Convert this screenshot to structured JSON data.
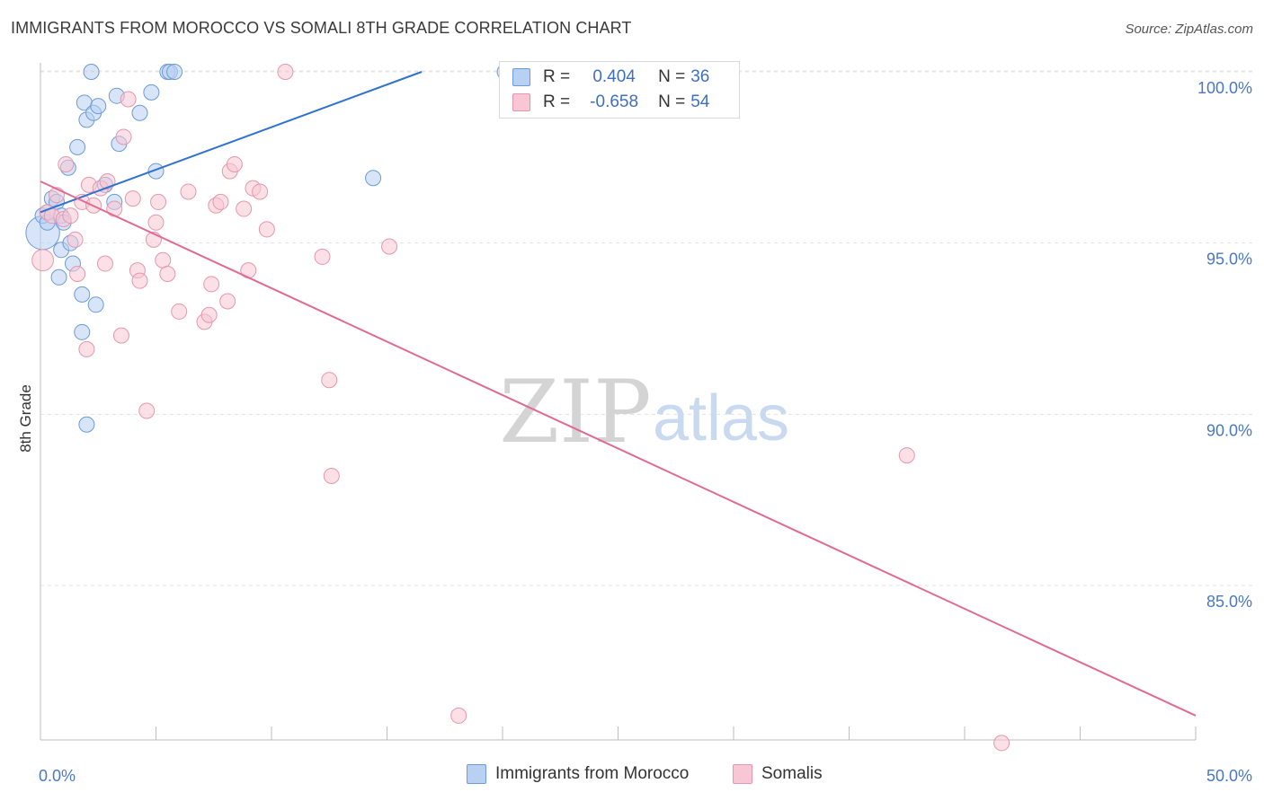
{
  "header": {
    "title": "IMMIGRANTS FROM MOROCCO VS SOMALI 8TH GRADE CORRELATION CHART",
    "source": "Source: ZipAtlas.com"
  },
  "watermark": {
    "zip": "ZIP",
    "atlas": "atlas"
  },
  "legend": {
    "rows": [
      {
        "r_label": "R =",
        "r_value": "0.404",
        "n_label": "N =",
        "n_value": "36"
      },
      {
        "r_label": "R =",
        "r_value": "-0.658",
        "n_label": "N =",
        "n_value": "54"
      }
    ]
  },
  "bottom_legend": {
    "series1": "Immigrants from Morocco",
    "series2": "Somalis"
  },
  "colors": {
    "blue_fill": "#b8d0f2",
    "blue_stroke": "#6d9ad8",
    "blue_line": "#2f72cf",
    "pink_fill": "#f8c6d4",
    "pink_stroke": "#e597ad",
    "pink_line": "#e06a93",
    "tick_text": "#4a78c4",
    "grid": "#e3e3e3"
  },
  "chart_data": {
    "type": "scatter",
    "title": "IMMIGRANTS FROM MOROCCO VS SOMALI 8TH GRADE CORRELATION CHART",
    "xlabel": "",
    "ylabel": "8th Grade",
    "xlim": [
      0,
      50
    ],
    "ylim": [
      80.2,
      100.5
    ],
    "x_tick_labels": [
      {
        "value": 0,
        "label": "0.0%"
      },
      {
        "value": 50,
        "label": "50.0%"
      }
    ],
    "x_minor_ticks": [
      0,
      5,
      10,
      15,
      20,
      25,
      30,
      35,
      40,
      45,
      50
    ],
    "y_ticks": [
      {
        "value": 100,
        "label": "100.0%"
      },
      {
        "value": 95,
        "label": "95.0%"
      },
      {
        "value": 90,
        "label": "90.0%"
      },
      {
        "value": 85,
        "label": "85.0%"
      }
    ],
    "series": [
      {
        "name": "Immigrants from Morocco",
        "color": "#6d9ad8",
        "R": 0.404,
        "N": 36,
        "trend": {
          "x": [
            0,
            16.5
          ],
          "y": [
            95.9,
            100.0
          ]
        },
        "points": [
          [
            0.1,
            95.3,
            22
          ],
          [
            0.1,
            95.8,
            10
          ],
          [
            0.3,
            95.6,
            10
          ],
          [
            0.3,
            95.9,
            10
          ],
          [
            0.5,
            96.3,
            10
          ],
          [
            0.7,
            96.2,
            10
          ],
          [
            0.8,
            94.0,
            10
          ],
          [
            0.9,
            95.8,
            10
          ],
          [
            1.0,
            95.6,
            10
          ],
          [
            0.9,
            94.8,
            10
          ],
          [
            1.2,
            97.2,
            10
          ],
          [
            1.3,
            95.0,
            10
          ],
          [
            1.4,
            94.4,
            10
          ],
          [
            1.6,
            97.8,
            10
          ],
          [
            1.8,
            93.5,
            10
          ],
          [
            1.8,
            92.4,
            10
          ],
          [
            1.9,
            99.1,
            10
          ],
          [
            2.0,
            98.6,
            10
          ],
          [
            2.0,
            89.7,
            10
          ],
          [
            2.2,
            100.0,
            10
          ],
          [
            2.3,
            98.8,
            10
          ],
          [
            2.5,
            99.0,
            10
          ],
          [
            2.4,
            93.2,
            10
          ],
          [
            2.8,
            96.7,
            10
          ],
          [
            3.2,
            96.2,
            10
          ],
          [
            3.3,
            99.3,
            10
          ],
          [
            3.4,
            97.9,
            10
          ],
          [
            4.3,
            98.8,
            10
          ],
          [
            4.8,
            99.4,
            10
          ],
          [
            5.0,
            97.1,
            10
          ],
          [
            5.5,
            100.0,
            10
          ],
          [
            5.6,
            100.0,
            10
          ],
          [
            5.8,
            100.0,
            10
          ],
          [
            14.4,
            96.9,
            10
          ],
          [
            20.1,
            100.0,
            10
          ]
        ]
      },
      {
        "name": "Somalis",
        "color": "#e597ad",
        "R": -0.658,
        "N": 54,
        "trend": {
          "x": [
            0,
            50
          ],
          "y": [
            96.8,
            81.2
          ]
        },
        "points": [
          [
            0.1,
            94.5,
            14
          ],
          [
            0.3,
            95.9,
            10
          ],
          [
            0.5,
            95.8,
            10
          ],
          [
            0.7,
            96.4,
            10
          ],
          [
            1.0,
            95.7,
            10
          ],
          [
            1.1,
            97.3,
            10
          ],
          [
            1.3,
            95.8,
            10
          ],
          [
            1.5,
            95.1,
            10
          ],
          [
            1.6,
            94.1,
            10
          ],
          [
            1.8,
            96.2,
            10
          ],
          [
            2.0,
            91.9,
            10
          ],
          [
            2.1,
            96.7,
            10
          ],
          [
            2.3,
            96.1,
            10
          ],
          [
            2.6,
            96.6,
            10
          ],
          [
            2.8,
            94.4,
            10
          ],
          [
            2.9,
            96.8,
            10
          ],
          [
            3.2,
            96.0,
            10
          ],
          [
            3.5,
            92.3,
            10
          ],
          [
            3.6,
            98.1,
            10
          ],
          [
            3.8,
            99.2,
            10
          ],
          [
            4.0,
            96.3,
            10
          ],
          [
            4.2,
            94.2,
            10
          ],
          [
            4.3,
            93.9,
            10
          ],
          [
            4.6,
            90.1,
            10
          ],
          [
            4.9,
            95.1,
            10
          ],
          [
            5.0,
            95.6,
            10
          ],
          [
            5.1,
            96.2,
            10
          ],
          [
            5.3,
            94.5,
            10
          ],
          [
            5.5,
            94.1,
            10
          ],
          [
            6.0,
            93.0,
            10
          ],
          [
            6.4,
            96.5,
            10
          ],
          [
            7.1,
            92.7,
            10
          ],
          [
            7.3,
            92.9,
            10
          ],
          [
            7.4,
            93.8,
            10
          ],
          [
            7.6,
            96.1,
            10
          ],
          [
            7.8,
            96.2,
            10
          ],
          [
            8.1,
            93.3,
            10
          ],
          [
            8.2,
            97.1,
            10
          ],
          [
            8.4,
            97.3,
            10
          ],
          [
            8.8,
            96.0,
            10
          ],
          [
            9.0,
            94.2,
            10
          ],
          [
            9.2,
            96.6,
            10
          ],
          [
            9.5,
            96.5,
            10
          ],
          [
            9.8,
            95.4,
            10
          ],
          [
            10.6,
            100.0,
            10
          ],
          [
            12.2,
            94.6,
            10
          ],
          [
            12.5,
            91.0,
            10
          ],
          [
            12.6,
            88.2,
            10
          ],
          [
            15.1,
            94.9,
            10
          ],
          [
            18.1,
            81.2,
            10
          ],
          [
            37.5,
            88.8,
            10
          ],
          [
            41.6,
            80.4,
            10
          ]
        ]
      }
    ]
  }
}
